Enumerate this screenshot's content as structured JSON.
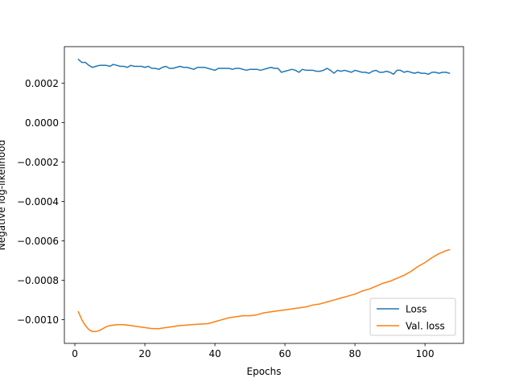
{
  "chart_data": {
    "type": "line",
    "xlabel": "Epochs",
    "ylabel": "Negative log-likelihood",
    "xlim": [
      -3,
      111
    ],
    "ylim": [
      -0.00112,
      0.000385
    ],
    "xticks": [
      0,
      20,
      40,
      60,
      80,
      100
    ],
    "xtick_labels": [
      "0",
      "20",
      "40",
      "60",
      "80",
      "100"
    ],
    "yticks": [
      -0.001,
      -0.0008,
      -0.0006,
      -0.0004,
      -0.0002,
      0.0,
      0.0002
    ],
    "ytick_labels": [
      "−0.0010",
      "−0.0008",
      "−0.0006",
      "−0.0004",
      "−0.0002",
      "0.0000",
      "0.0002"
    ],
    "grid": false,
    "legend_position": "lower right",
    "series": [
      {
        "name": "Loss",
        "color": "#1f77b4",
        "x": [
          1,
          2,
          3,
          4,
          5,
          6,
          7,
          8,
          9,
          10,
          11,
          12,
          13,
          14,
          15,
          16,
          17,
          18,
          19,
          20,
          21,
          22,
          23,
          24,
          25,
          26,
          27,
          28,
          29,
          30,
          31,
          32,
          33,
          34,
          35,
          36,
          37,
          38,
          39,
          40,
          41,
          42,
          43,
          44,
          45,
          46,
          47,
          48,
          49,
          50,
          51,
          52,
          53,
          54,
          55,
          56,
          57,
          58,
          59,
          60,
          61,
          62,
          63,
          64,
          65,
          66,
          67,
          68,
          69,
          70,
          71,
          72,
          73,
          74,
          75,
          76,
          77,
          78,
          79,
          80,
          81,
          82,
          83,
          84,
          85,
          86,
          87,
          88,
          89,
          90,
          91,
          92,
          93,
          94,
          95,
          96,
          97,
          98,
          99,
          100,
          101,
          102,
          103,
          104,
          105,
          106,
          107
        ],
        "y": [
          0.00032,
          0.000305,
          0.000305,
          0.00029,
          0.00028,
          0.000285,
          0.00029,
          0.00029,
          0.00029,
          0.000285,
          0.000295,
          0.00029,
          0.000285,
          0.000285,
          0.00028,
          0.00029,
          0.000285,
          0.000285,
          0.000285,
          0.00028,
          0.000285,
          0.000275,
          0.000275,
          0.00027,
          0.00028,
          0.000285,
          0.000275,
          0.000275,
          0.00028,
          0.000285,
          0.00028,
          0.00028,
          0.000275,
          0.00027,
          0.00028,
          0.00028,
          0.00028,
          0.000275,
          0.00027,
          0.000265,
          0.000275,
          0.000275,
          0.000275,
          0.000275,
          0.00027,
          0.000275,
          0.000275,
          0.00027,
          0.000265,
          0.00027,
          0.00027,
          0.00027,
          0.000265,
          0.00027,
          0.000275,
          0.00028,
          0.000275,
          0.000275,
          0.000255,
          0.00026,
          0.000265,
          0.00027,
          0.000265,
          0.000255,
          0.00027,
          0.000265,
          0.000265,
          0.000265,
          0.00026,
          0.00026,
          0.000265,
          0.000275,
          0.000265,
          0.00025,
          0.000265,
          0.00026,
          0.000265,
          0.00026,
          0.000255,
          0.000265,
          0.00026,
          0.000255,
          0.000255,
          0.00025,
          0.00026,
          0.000265,
          0.000255,
          0.000255,
          0.00026,
          0.000255,
          0.000245,
          0.000265,
          0.000265,
          0.000255,
          0.00026,
          0.000255,
          0.00025,
          0.000255,
          0.00025,
          0.00025,
          0.000245,
          0.000255,
          0.000255,
          0.00025,
          0.000255,
          0.000255,
          0.00025
        ]
      },
      {
        "name": "Val. loss",
        "color": "#ff7f0e",
        "x": [
          1,
          2,
          3,
          4,
          5,
          6,
          7,
          8,
          9,
          10,
          12,
          14,
          16,
          18,
          20,
          22,
          24,
          26,
          28,
          30,
          32,
          34,
          36,
          38,
          40,
          42,
          44,
          46,
          48,
          50,
          52,
          54,
          56,
          58,
          60,
          62,
          64,
          66,
          68,
          70,
          72,
          74,
          76,
          78,
          80,
          82,
          84,
          86,
          88,
          90,
          92,
          94,
          96,
          98,
          100,
          102,
          104,
          106,
          107
        ],
        "y": [
          -0.00096,
          -0.001,
          -0.00103,
          -0.00105,
          -0.00106,
          -0.00106,
          -0.001055,
          -0.001045,
          -0.001035,
          -0.00103,
          -0.001025,
          -0.001025,
          -0.00103,
          -0.001035,
          -0.00104,
          -0.001045,
          -0.001045,
          -0.00104,
          -0.001035,
          -0.00103,
          -0.001027,
          -0.001024,
          -0.001022,
          -0.00102,
          -0.00101,
          -0.001,
          -0.00099,
          -0.000985,
          -0.00098,
          -0.00098,
          -0.000975,
          -0.000965,
          -0.00096,
          -0.000955,
          -0.00095,
          -0.000945,
          -0.00094,
          -0.000935,
          -0.000925,
          -0.00092,
          -0.00091,
          -0.0009,
          -0.00089,
          -0.00088,
          -0.00087,
          -0.000855,
          -0.000845,
          -0.00083,
          -0.000815,
          -0.000805,
          -0.00079,
          -0.000775,
          -0.000755,
          -0.00073,
          -0.00071,
          -0.000685,
          -0.000665,
          -0.00065,
          -0.000645
        ]
      }
    ]
  }
}
